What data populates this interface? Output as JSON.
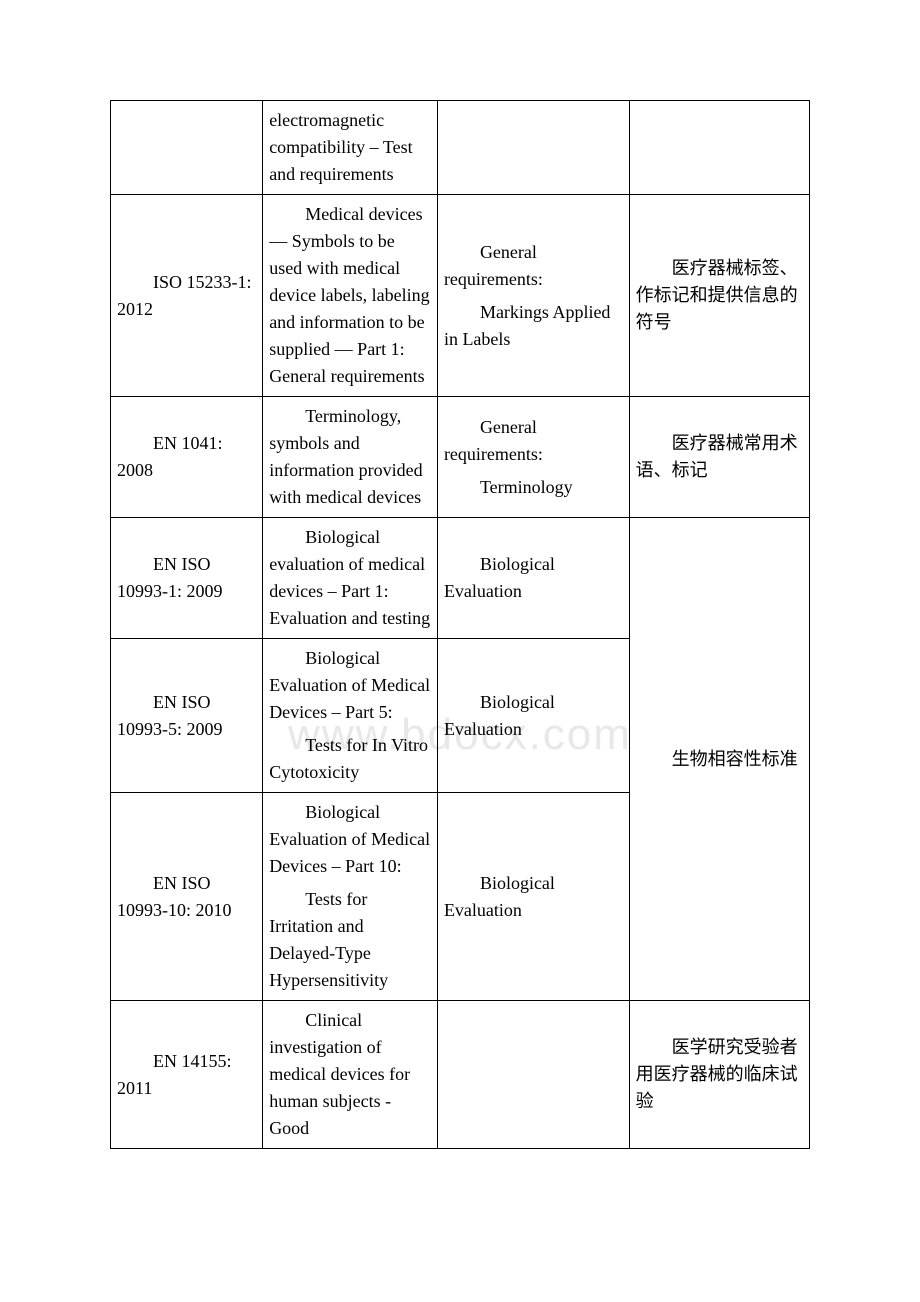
{
  "watermark": "www.bdocx.com",
  "rows": [
    {
      "c1": "",
      "c2": "electromagnetic compatibility – Test and requirements",
      "c3": "",
      "c4": ""
    },
    {
      "c1": "ISO 15233-1: 2012",
      "c2": "Medical devices — Symbols to be used with medical device labels, labeling and information to be supplied — Part 1: General requirements",
      "c3a": "General requirements:",
      "c3b": "Markings Applied in Labels",
      "c4": "医疗器械标签、作标记和提供信息的符号"
    },
    {
      "c1": "EN 1041: 2008",
      "c2": "Terminology, symbols and information provided with medical devices",
      "c3a": "General requirements:",
      "c3b": "Terminology",
      "c4": "医疗器械常用术语、标记"
    },
    {
      "c1": "EN ISO 10993-1: 2009",
      "c2": "Biological evaluation of medical devices – Part 1: Evaluation and testing",
      "c3": "Biological Evaluation",
      "c4merge": "生物相容性标准"
    },
    {
      "c1": "EN ISO 10993-5: 2009",
      "c2a": "Biological Evaluation of Medical Devices – Part 5:",
      "c2b": "Tests for In Vitro Cytotoxicity",
      "c3": "Biological Evaluation"
    },
    {
      "c1": "EN ISO 10993-10: 2010",
      "c2a": "Biological Evaluation of Medical Devices – Part 10:",
      "c2b": "Tests for Irritation and Delayed-Type Hypersensitivity",
      "c3": "Biological Evaluation"
    },
    {
      "c1": "EN 14155: 2011",
      "c2": "Clinical investigation of medical devices for human subjects - Good",
      "c3": "",
      "c4": "医学研究受验者用医疗器械的临床试验"
    }
  ]
}
